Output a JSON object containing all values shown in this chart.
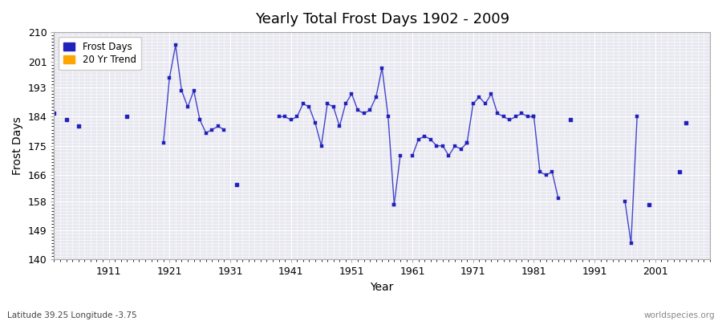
{
  "title": "Yearly Total Frost Days 1902 - 2009",
  "xlabel": "Year",
  "ylabel": "Frost Days",
  "subtitle": "Latitude 39.25 Longitude -3.75",
  "watermark": "worldspecies.org",
  "ylim": [
    140,
    210
  ],
  "xlim": [
    1902,
    2010
  ],
  "yticks": [
    140,
    149,
    158,
    166,
    175,
    184,
    193,
    201,
    210
  ],
  "xticks": [
    1911,
    1921,
    1931,
    1941,
    1951,
    1961,
    1971,
    1981,
    1991,
    2001
  ],
  "line_color": "#4444cc",
  "dot_color": "#2222bb",
  "bg_color": "#e8e8f0",
  "fig_bg": "#ffffff",
  "legend_frost_color": "#2222bb",
  "legend_trend_color": "#ffa500",
  "segments": [
    {
      "years": [
        1902
      ],
      "vals": [
        185
      ]
    },
    {
      "years": [
        1904
      ],
      "vals": [
        183
      ]
    },
    {
      "years": [
        1906
      ],
      "vals": [
        181
      ]
    },
    {
      "years": [
        1914
      ],
      "vals": [
        184
      ]
    },
    {
      "years": [
        1920,
        1921,
        1922,
        1923,
        1924,
        1925,
        1926,
        1927,
        1928,
        1929,
        1930
      ],
      "vals": [
        176,
        196,
        206,
        192,
        187,
        192,
        183,
        179,
        180,
        181,
        180
      ]
    },
    {
      "years": [
        1932
      ],
      "vals": [
        163
      ]
    },
    {
      "years": [
        1939,
        1940,
        1941,
        1942,
        1943,
        1944,
        1945,
        1946,
        1947,
        1948,
        1949,
        1950,
        1951,
        1952,
        1953,
        1954,
        1955,
        1956,
        1957,
        1958
      ],
      "vals": [
        184,
        184,
        183,
        184,
        188,
        187,
        182,
        175,
        188,
        187,
        181,
        188,
        191,
        186,
        185,
        186,
        190,
        199,
        184,
        157
      ]
    },
    {
      "years": [
        1958,
        1959
      ],
      "vals": [
        157,
        172
      ]
    },
    {
      "years": [
        1961,
        1962,
        1963,
        1964,
        1965,
        1966,
        1967,
        1968,
        1969,
        1970
      ],
      "vals": [
        172,
        177,
        178,
        177,
        175,
        175,
        172,
        175,
        174,
        176
      ]
    },
    {
      "years": [
        1970,
        1971,
        1972,
        1973,
        1974,
        1975,
        1976,
        1977,
        1978,
        1979,
        1980,
        1981
      ],
      "vals": [
        176,
        188,
        190,
        188,
        191,
        185,
        184,
        183,
        184,
        185,
        184,
        184
      ]
    },
    {
      "years": [
        1981,
        1982,
        1983,
        1984,
        1985
      ],
      "vals": [
        184,
        167,
        166,
        167,
        159
      ]
    },
    {
      "years": [
        1987
      ],
      "vals": [
        183
      ]
    },
    {
      "years": [
        1996,
        1997,
        1998
      ],
      "vals": [
        158,
        145,
        184
      ]
    },
    {
      "years": [
        2000
      ],
      "vals": [
        157
      ]
    },
    {
      "years": [
        2005
      ],
      "vals": [
        167
      ]
    },
    {
      "years": [
        2006
      ],
      "vals": [
        182
      ]
    }
  ]
}
